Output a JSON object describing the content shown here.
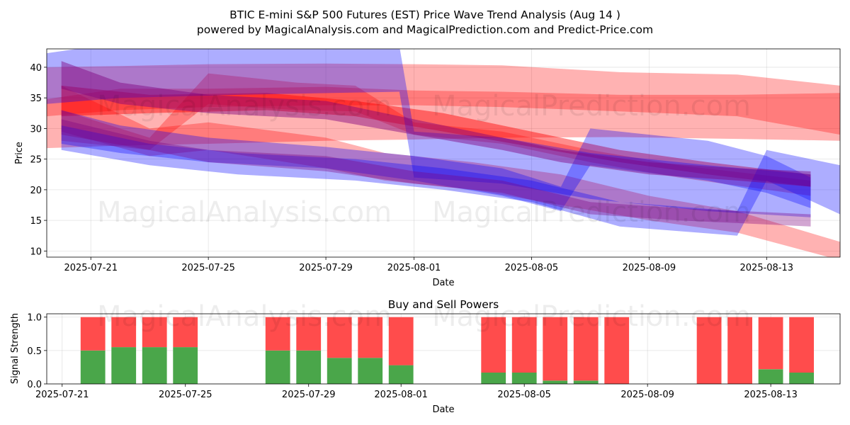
{
  "title_line1": "BTIC E-mini S&P 500 Futures (EST) Price Wave Trend Analysis (Aug 14 )",
  "title_line2": "powered by MagicalAnalysis.com and MagicalPrediction.com and Predict-Price.com",
  "watermarks": [
    "MagicalAnalysis.com",
    "MagicalPrediction.com"
  ],
  "colors": {
    "red": "#ff0000",
    "blue": "#0000ff",
    "purple": "#7f007f",
    "buy": "#4aa64a",
    "sell": "#ff4c4c"
  },
  "chart_data": [
    {
      "type": "area",
      "title": "",
      "xlabel": "Date",
      "ylabel": "Price",
      "grid": true,
      "xlim": [
        "2025-07-19T12:00",
        "2025-08-15T12:00"
      ],
      "ylim": [
        9,
        43
      ],
      "x_ticks": [
        "2025-07-21",
        "2025-07-25",
        "2025-07-29",
        "2025-08-01",
        "2025-08-05",
        "2025-08-09",
        "2025-08-13"
      ],
      "y_ticks": [
        10,
        15,
        20,
        25,
        30,
        35,
        40
      ],
      "bands": [
        {
          "color": "red",
          "opacity": 0.3,
          "x": [
            "2025-07-19T12:00",
            "2025-07-22",
            "2025-07-25",
            "2025-07-29",
            "2025-08-01",
            "2025-08-04",
            "2025-08-08",
            "2025-08-12",
            "2025-08-15T12:00"
          ],
          "upper": [
            40.0,
            40.2,
            40.5,
            40.6,
            40.5,
            40.3,
            39.2,
            38.8,
            37.0
          ],
          "lower": [
            26.8,
            27.2,
            27.5,
            28.0,
            28.2,
            28.5,
            28.6,
            28.3,
            28.0
          ]
        },
        {
          "color": "red",
          "opacity": 0.3,
          "x": [
            "2025-07-19T12:00",
            "2025-07-22",
            "2025-07-25",
            "2025-07-29",
            "2025-08-01",
            "2025-08-04",
            "2025-08-08",
            "2025-08-12",
            "2025-08-15T12:00"
          ],
          "upper": [
            34.8,
            36.5,
            36.5,
            36.8,
            36.2,
            36.0,
            35.5,
            35.5,
            35.8
          ],
          "lower": [
            32.0,
            33.0,
            33.5,
            33.8,
            33.8,
            33.5,
            32.8,
            32.0,
            29.0
          ]
        },
        {
          "color": "red",
          "opacity": 0.3,
          "x": [
            "2025-07-20",
            "2025-07-23",
            "2025-07-25",
            "2025-07-29",
            "2025-07-31",
            "2025-08-03",
            "2025-08-06",
            "2025-08-09",
            "2025-08-12",
            "2025-08-15T12:00"
          ],
          "upper": [
            37.0,
            30.0,
            31.0,
            28.5,
            26.0,
            24.5,
            22.5,
            19.0,
            16.5,
            11.5
          ],
          "lower": [
            29.5,
            25.5,
            26.5,
            23.5,
            21.5,
            20.0,
            17.5,
            15.0,
            13.0,
            8.5
          ]
        },
        {
          "color": "red",
          "opacity": 0.3,
          "x": [
            "2025-07-20",
            "2025-07-23",
            "2025-07-25",
            "2025-07-28",
            "2025-07-30",
            "2025-08-01",
            "2025-08-04",
            "2025-08-07",
            "2025-08-10",
            "2025-08-14T12:00"
          ],
          "upper": [
            33.0,
            28.5,
            39.0,
            37.5,
            37.0,
            31.0,
            29.5,
            26.5,
            24.0,
            21.5
          ],
          "lower": [
            28.0,
            26.5,
            34.0,
            33.0,
            32.8,
            29.0,
            27.5,
            24.5,
            22.0,
            19.0
          ]
        },
        {
          "color": "red",
          "opacity": 0.45,
          "x": [
            "2025-07-20",
            "2025-07-23",
            "2025-07-27",
            "2025-07-30",
            "2025-08-02",
            "2025-08-05",
            "2025-08-08",
            "2025-08-11",
            "2025-08-14T12:00"
          ],
          "upper": [
            37.0,
            35.5,
            35.8,
            34.5,
            32.5,
            29.5,
            26.5,
            24.5,
            22.5
          ],
          "lower": [
            32.0,
            32.5,
            33.0,
            32.0,
            29.5,
            27.0,
            24.5,
            22.5,
            20.5
          ]
        },
        {
          "color": "blue",
          "opacity": 0.32,
          "x": [
            "2025-07-19T12:00",
            "2025-07-22",
            "2025-07-26",
            "2025-07-31T12:00",
            "2025-08-01",
            "2025-08-04",
            "2025-08-07",
            "2025-08-11",
            "2025-08-14T12:00"
          ],
          "upper": [
            42.3,
            44.0,
            44.5,
            43.5,
            29.5,
            28.5,
            26.0,
            24.0,
            22.5
          ],
          "lower": [
            34.0,
            35.0,
            35.5,
            36.0,
            22.0,
            21.0,
            18.5,
            16.5,
            15.5
          ]
        },
        {
          "color": "blue",
          "opacity": 0.32,
          "x": [
            "2025-07-20",
            "2025-07-22",
            "2025-07-25",
            "2025-07-29",
            "2025-08-01",
            "2025-08-04",
            "2025-08-06",
            "2025-08-07",
            "2025-08-11",
            "2025-08-13",
            "2025-08-14T12:00"
          ],
          "upper": [
            33.0,
            30.5,
            28.5,
            27.0,
            25.5,
            23.5,
            20.5,
            30.0,
            28.0,
            25.5,
            22.0
          ],
          "lower": [
            27.5,
            26.0,
            24.5,
            23.5,
            21.5,
            19.0,
            16.5,
            24.0,
            21.5,
            19.5,
            17.0
          ]
        },
        {
          "color": "blue",
          "opacity": 0.32,
          "x": [
            "2025-07-20",
            "2025-07-23",
            "2025-07-26",
            "2025-07-30",
            "2025-08-02",
            "2025-08-05",
            "2025-08-08",
            "2025-08-12",
            "2025-08-13",
            "2025-08-15T12:00"
          ],
          "upper": [
            30.5,
            27.5,
            26.0,
            25.0,
            23.5,
            21.5,
            18.0,
            16.5,
            26.5,
            24.0
          ],
          "lower": [
            26.5,
            24.0,
            22.5,
            21.5,
            20.0,
            18.0,
            14.0,
            12.5,
            21.5,
            16.0
          ]
        },
        {
          "color": "purple",
          "opacity": 0.45,
          "x": [
            "2025-07-20",
            "2025-07-22",
            "2025-07-25",
            "2025-07-29",
            "2025-08-01",
            "2025-08-04",
            "2025-08-06",
            "2025-08-09",
            "2025-08-12",
            "2025-08-14T12:00"
          ],
          "upper": [
            41.0,
            37.5,
            35.5,
            34.5,
            31.5,
            28.5,
            26.5,
            24.5,
            23.5,
            23.0
          ],
          "lower": [
            36.5,
            34.0,
            32.5,
            31.5,
            29.0,
            26.5,
            24.5,
            22.5,
            21.5,
            20.5
          ]
        },
        {
          "color": "purple",
          "opacity": 0.35,
          "x": [
            "2025-07-20",
            "2025-07-23",
            "2025-07-25",
            "2025-07-29",
            "2025-08-01",
            "2025-08-04",
            "2025-08-07",
            "2025-08-10",
            "2025-08-14T12:00"
          ],
          "upper": [
            31.5,
            28.0,
            26.5,
            25.5,
            23.0,
            21.5,
            18.0,
            17.0,
            16.0
          ],
          "lower": [
            29.0,
            26.5,
            24.5,
            23.0,
            21.0,
            19.5,
            16.0,
            15.0,
            14.0
          ]
        }
      ]
    },
    {
      "type": "bar",
      "title": "Buy and Sell Powers",
      "xlabel": "Date",
      "ylabel": "Signal Strength",
      "grid": true,
      "xlim": [
        "2025-07-20T12:00",
        "2025-08-15T06:00"
      ],
      "ylim": [
        0,
        1.05
      ],
      "x_ticks": [
        "2025-07-21",
        "2025-07-25",
        "2025-07-29",
        "2025-08-01",
        "2025-08-05",
        "2025-08-09",
        "2025-08-13"
      ],
      "y_ticks": [
        "0.0",
        "0.5",
        "1.0"
      ],
      "x": [
        "2025-07-22",
        "2025-07-23",
        "2025-07-24",
        "2025-07-25",
        "2025-07-28",
        "2025-07-29",
        "2025-07-30",
        "2025-07-31",
        "2025-08-01",
        "2025-08-04",
        "2025-08-05",
        "2025-08-06",
        "2025-08-07",
        "2025-08-08",
        "2025-08-11",
        "2025-08-12",
        "2025-08-13",
        "2025-08-14"
      ],
      "series": [
        {
          "values": [
            0.5,
            0.55,
            0.55,
            0.55,
            0.5,
            0.5,
            0.39,
            0.39,
            0.28,
            0.17,
            0.17,
            0.05,
            0.05,
            0.0,
            0.0,
            0.0,
            0.22,
            0.17
          ]
        },
        {
          "values": [
            0.5,
            0.45,
            0.45,
            0.45,
            0.5,
            0.5,
            0.61,
            0.61,
            0.72,
            0.83,
            0.83,
            0.95,
            0.95,
            1.0,
            1.0,
            1.0,
            0.78,
            0.83
          ]
        }
      ]
    }
  ]
}
